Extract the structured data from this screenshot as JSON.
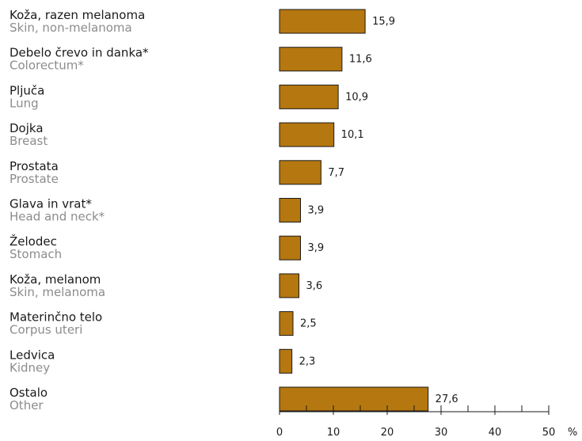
{
  "chart_data": {
    "type": "bar",
    "orientation": "horizontal",
    "categories": [
      {
        "label": "Koža, razen melanoma",
        "label_en": "Skin, non-melanoma"
      },
      {
        "label": "Debelo črevo in danka*",
        "label_en": "Colorectum*"
      },
      {
        "label": "Pljuča",
        "label_en": "Lung"
      },
      {
        "label": "Dojka",
        "label_en": "Breast"
      },
      {
        "label": "Prostata",
        "label_en": "Prostate"
      },
      {
        "label": "Glava in vrat*",
        "label_en": "Head and neck*"
      },
      {
        "label": "Želodec",
        "label_en": "Stomach"
      },
      {
        "label": "Koža, melanom",
        "label_en": "Skin, melanoma"
      },
      {
        "label": "Materinčno telo",
        "label_en": "Corpus uteri"
      },
      {
        "label": "Ledvica",
        "label_en": "Kidney"
      },
      {
        "label": "Ostalo",
        "label_en": "Other"
      }
    ],
    "values": [
      15.9,
      11.6,
      10.9,
      10.1,
      7.7,
      3.9,
      3.9,
      3.6,
      2.5,
      2.3,
      27.6
    ],
    "value_labels": [
      "15,9",
      "11,6",
      "10,9",
      "10,1",
      "7,7",
      "3,9",
      "3,9",
      "3,6",
      "2,5",
      "2,3",
      "27,6"
    ],
    "xlim": [
      0,
      50
    ],
    "xticks": [
      0,
      10,
      20,
      30,
      40,
      50
    ],
    "unit": "%",
    "bar_color": "#b5770f",
    "bar_edge_color": "#1a1a1a",
    "grid": false,
    "legend": "none"
  }
}
